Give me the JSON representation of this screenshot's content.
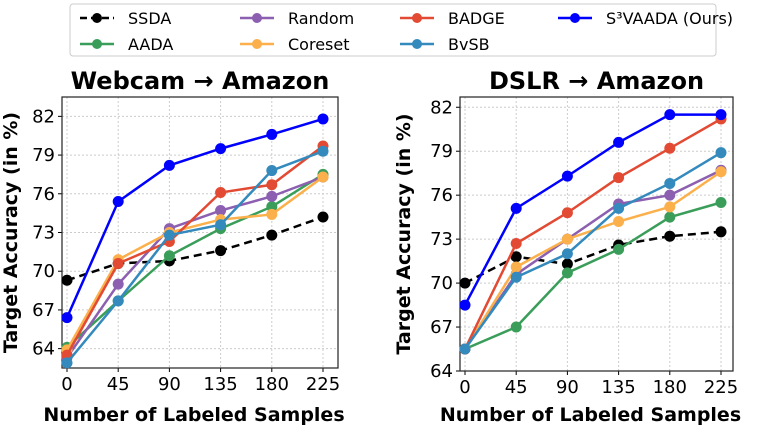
{
  "legend": [
    {
      "name": "SSDA",
      "color": "#000000",
      "dashed": true
    },
    {
      "name": "AADA",
      "color": "#3a9e5a"
    },
    {
      "name": "Random",
      "color": "#8c5fb0"
    },
    {
      "name": "Coreset",
      "color": "#fbb04c"
    },
    {
      "name": "BADGE",
      "color": "#e24a33"
    },
    {
      "name": "BvSB",
      "color": "#348abd"
    },
    {
      "name": "S³VAADA (Ours)",
      "color": "#0000ff"
    }
  ],
  "chart_data": [
    {
      "type": "line",
      "title": "Webcam → Amazon",
      "xlabel": "Number of Labeled Samples",
      "ylabel": "Target Accuracy (in %)",
      "x": [
        0,
        45,
        90,
        135,
        180,
        225
      ],
      "xticks": [
        "0",
        "45",
        "90",
        "135",
        "180",
        "225"
      ],
      "yticks": [
        "64",
        "67",
        "70",
        "73",
        "76",
        "79",
        "82"
      ],
      "ylim": [
        62.5,
        83.5
      ],
      "grid": true,
      "series": [
        {
          "name": "SSDA",
          "values": [
            69.3,
            70.6,
            70.8,
            71.6,
            72.8,
            74.2
          ]
        },
        {
          "name": "AADA",
          "values": [
            64.1,
            67.7,
            71.2,
            73.3,
            75.0,
            77.5
          ]
        },
        {
          "name": "Random",
          "values": [
            63.3,
            69.0,
            73.3,
            74.7,
            75.8,
            77.3
          ]
        },
        {
          "name": "Coreset",
          "values": [
            63.9,
            70.9,
            73.0,
            74.0,
            74.4,
            77.3
          ]
        },
        {
          "name": "BADGE",
          "values": [
            63.5,
            70.6,
            72.3,
            76.1,
            76.7,
            79.7
          ]
        },
        {
          "name": "BvSB",
          "values": [
            62.9,
            67.7,
            72.8,
            73.6,
            77.8,
            79.3
          ]
        },
        {
          "name": "S³VAADA (Ours)",
          "values": [
            66.4,
            75.4,
            78.2,
            79.5,
            80.6,
            81.8
          ]
        }
      ]
    },
    {
      "type": "line",
      "title": "DSLR → Amazon",
      "xlabel": "Number of Labeled Samples",
      "ylabel": "Target Accuracy (in %)",
      "x": [
        0,
        45,
        90,
        135,
        180,
        225
      ],
      "xticks": [
        "0",
        "45",
        "90",
        "135",
        "180",
        "225"
      ],
      "yticks": [
        "64",
        "67",
        "70",
        "73",
        "76",
        "79",
        "82"
      ],
      "ylim": [
        64,
        82.7
      ],
      "grid": true,
      "series": [
        {
          "name": "SSDA",
          "values": [
            70.0,
            71.8,
            71.3,
            72.6,
            73.2,
            73.5
          ]
        },
        {
          "name": "AADA",
          "values": [
            65.5,
            67.0,
            70.7,
            72.3,
            74.5,
            75.5
          ]
        },
        {
          "name": "Random",
          "values": [
            65.5,
            70.6,
            73.0,
            75.4,
            76.0,
            77.7
          ]
        },
        {
          "name": "Coreset",
          "values": [
            65.5,
            71.1,
            73.0,
            74.2,
            75.2,
            77.6
          ]
        },
        {
          "name": "BADGE",
          "values": [
            65.5,
            72.7,
            74.8,
            77.2,
            79.2,
            81.2
          ]
        },
        {
          "name": "BvSB",
          "values": [
            65.5,
            70.4,
            72.0,
            75.1,
            76.8,
            78.9
          ]
        },
        {
          "name": "S³VAADA (Ours)",
          "values": [
            68.5,
            75.1,
            77.3,
            79.6,
            81.5,
            81.5
          ]
        }
      ]
    }
  ]
}
